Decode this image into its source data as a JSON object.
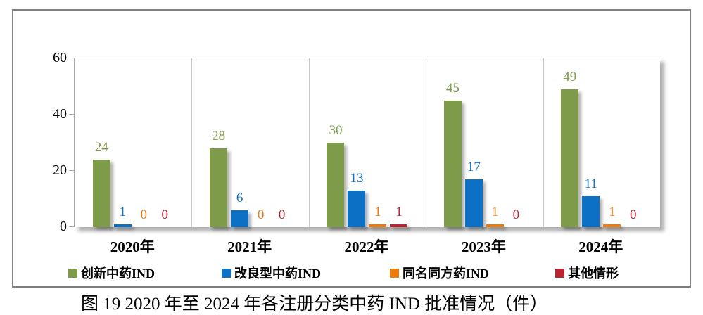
{
  "caption": "图 19 2020 年至 2024 年各注册分类中药 IND 批准情况（件）",
  "chart_data": {
    "type": "bar",
    "title": "",
    "categories": [
      "2020年",
      "2021年",
      "2022年",
      "2023年",
      "2024年"
    ],
    "series": [
      {
        "name": "创新中药IND",
        "color": "#7D9B49",
        "values": [
          24,
          28,
          30,
          45,
          49
        ]
      },
      {
        "name": "改良型中药IND",
        "color": "#0C71C4",
        "values": [
          1,
          6,
          13,
          17,
          11
        ]
      },
      {
        "name": "同名同方药IND",
        "color": "#ED7C10",
        "values": [
          0,
          0,
          1,
          1,
          1
        ]
      },
      {
        "name": "其他情形",
        "color": "#BB2532",
        "values": [
          0,
          0,
          1,
          0,
          0
        ]
      }
    ],
    "xlabel": "",
    "ylabel": "",
    "ylim": [
      0,
      60
    ],
    "yticks": [
      0,
      20,
      40,
      60
    ],
    "grid": "vertical category separators only",
    "legend_position": "bottom",
    "data_labels": "above bars, colored same as series"
  }
}
